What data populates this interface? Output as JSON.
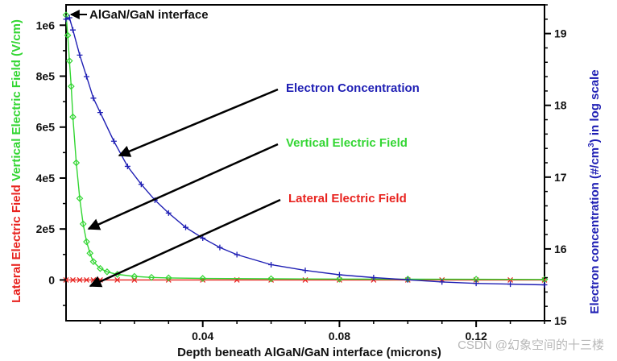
{
  "chart_data": {
    "type": "line",
    "x_axis": {
      "label": "Depth beneath AlGaN/GaN interface (microns)",
      "range": [
        0,
        0.14
      ],
      "ticks": [
        0.04,
        0.08,
        0.12
      ],
      "tick_labels": [
        "0.04",
        "0.08",
        "0.12"
      ]
    },
    "left_axis": {
      "label_parts": [
        {
          "text": "Lateral Electric Field ",
          "color": "#e8231f"
        },
        {
          "text": "Vertical Electric Field (V/cm)",
          "color": "#33d633"
        }
      ],
      "range": [
        -160000,
        1080000
      ],
      "ticks": [
        0,
        200000,
        400000,
        600000,
        800000,
        1000000
      ],
      "tick_labels": [
        "0",
        "2e5",
        "4e5",
        "6e5",
        "8e5",
        "1e6"
      ]
    },
    "right_axis": {
      "label": "Electron concentration (#/cm3) in log scale",
      "label_main": "Electron concentration (#/cm",
      "label_sup": "3",
      "label_tail": ") in log scale",
      "range": [
        15,
        19.4
      ],
      "ticks": [
        15,
        16,
        17,
        18,
        19
      ],
      "tick_labels": [
        "15",
        "16",
        "17",
        "18",
        "19"
      ]
    },
    "series": [
      {
        "name": "Electron Concentration",
        "axis": "right",
        "color": "#1f1fb4",
        "marker": "plus",
        "x": [
          0.0,
          0.001,
          0.002,
          0.004,
          0.006,
          0.008,
          0.01,
          0.014,
          0.018,
          0.022,
          0.026,
          0.03,
          0.035,
          0.04,
          0.045,
          0.05,
          0.06,
          0.07,
          0.08,
          0.09,
          0.1,
          0.11,
          0.12,
          0.13,
          0.14
        ],
        "y": [
          19.2,
          19.22,
          19.05,
          18.7,
          18.4,
          18.1,
          17.9,
          17.5,
          17.15,
          16.9,
          16.68,
          16.5,
          16.3,
          16.15,
          16.02,
          15.92,
          15.78,
          15.7,
          15.64,
          15.6,
          15.57,
          15.54,
          15.52,
          15.51,
          15.5
        ]
      },
      {
        "name": "Vertical Electric Field",
        "axis": "left",
        "color": "#33d633",
        "marker": "diamond",
        "x": [
          0.0,
          0.0005,
          0.001,
          0.0015,
          0.002,
          0.003,
          0.004,
          0.005,
          0.006,
          0.007,
          0.008,
          0.01,
          0.012,
          0.015,
          0.02,
          0.025,
          0.03,
          0.04,
          0.06,
          0.08,
          0.1,
          0.12,
          0.14
        ],
        "y": [
          1040000,
          960000,
          860000,
          760000,
          640000,
          460000,
          320000,
          220000,
          150000,
          105000,
          72000,
          45000,
          32000,
          22000,
          14000,
          10000,
          8000,
          6000,
          4500,
          3500,
          3000,
          2500,
          2000
        ]
      },
      {
        "name": "Lateral Electric Field",
        "axis": "left",
        "color": "#e8231f",
        "marker": "x",
        "x": [
          0.0,
          0.002,
          0.004,
          0.006,
          0.008,
          0.01,
          0.015,
          0.02,
          0.03,
          0.04,
          0.05,
          0.06,
          0.07,
          0.08,
          0.09,
          0.1,
          0.11,
          0.12,
          0.13,
          0.14
        ],
        "y": [
          0,
          0,
          0,
          0,
          0,
          0,
          0,
          0,
          0,
          0,
          0,
          0,
          0,
          0,
          0,
          0,
          0,
          0,
          0,
          0
        ]
      }
    ],
    "annotations": [
      {
        "text": "AlGaN/GaN interface",
        "color": "#111111"
      },
      {
        "text": "Electron Concentration",
        "color": "#1f1fb4"
      },
      {
        "text": "Vertical Electric Field",
        "color": "#33d633"
      },
      {
        "text": "Lateral Electric Field",
        "color": "#e8231f"
      }
    ],
    "watermark": "CSDN @幻象空间的十三楼"
  }
}
